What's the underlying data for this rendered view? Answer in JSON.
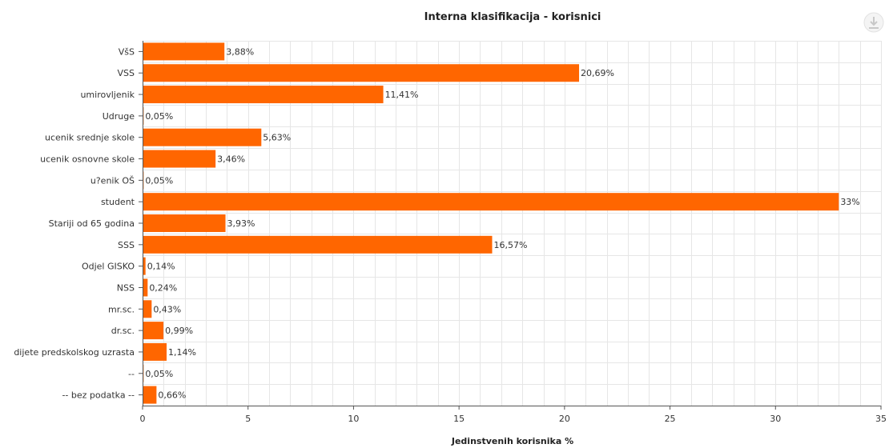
{
  "chart_data": {
    "type": "bar",
    "orientation": "horizontal",
    "title": "Interna klasifikacija - korisnici",
    "xlabel": "Jedinstvenih korisnika %",
    "ylabel": "",
    "xlim": [
      0,
      35
    ],
    "x_ticks": [
      "0",
      "5",
      "10",
      "15",
      "20",
      "25",
      "30",
      "35"
    ],
    "grid": true,
    "bar_color": "#ff6600",
    "categories": [
      "VšS",
      "VSS",
      "umirovljenik",
      "Udruge",
      "ucenik srednje skole",
      "ucenik osnovne skole",
      "u?enik OŠ",
      "student",
      "Stariji od 65 godina",
      "SSS",
      "Odjel GISKO",
      "NSS",
      "mr.sc.",
      "dr.sc.",
      "dijete predskolskog uzrasta",
      "--",
      "-- bez podatka --"
    ],
    "values": [
      3.88,
      20.69,
      11.41,
      0.05,
      5.63,
      3.46,
      0.05,
      33,
      3.93,
      16.57,
      0.14,
      0.24,
      0.43,
      0.99,
      1.14,
      0.05,
      0.66
    ],
    "value_labels": [
      "3,88%",
      "20,69%",
      "11,41%",
      "0,05%",
      "5,63%",
      "3,46%",
      "0,05%",
      "33%",
      "3,93%",
      "16,57%",
      "0,14%",
      "0,24%",
      "0,43%",
      "0,99%",
      "1,14%",
      "0,05%",
      "0,66%"
    ]
  },
  "toolbar": {
    "download_icon": "download-icon"
  }
}
